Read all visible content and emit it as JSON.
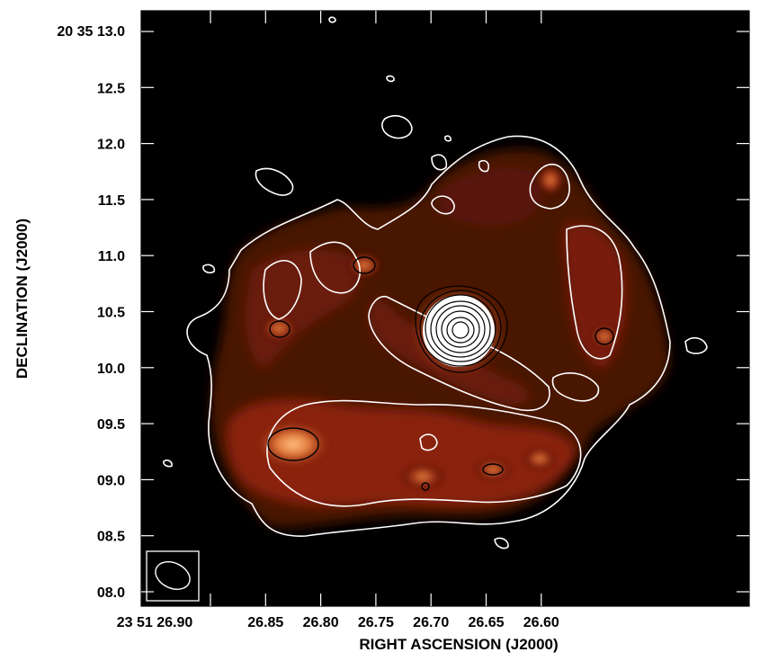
{
  "x_axis": {
    "label": "RIGHT ASCENSION (J2000)",
    "first_tick": "23 51 26.90",
    "ticks": [
      "26.85",
      "26.80",
      "26.75",
      "26.70",
      "26.65",
      "26.60"
    ]
  },
  "y_axis": {
    "label": "DECLINATION (J2000)",
    "top_tick": "20 35 13.0",
    "ticks": [
      "12.5",
      "12.0",
      "11.5",
      "11.0",
      "10.5",
      "10.0",
      "09.5",
      "09.0",
      "08.5",
      "08.0"
    ]
  },
  "colors": {
    "background": "#000000",
    "emission_low": "#3a0a03",
    "emission_mid": "#8a2410",
    "emission_high": "#e0783a",
    "emission_peak": "#ffc080",
    "contour_low": "#ffffff",
    "contour_high": "#000000"
  },
  "image_content": {
    "description_visible": "radio ring with central compact source and contour overlay",
    "beam_marker": "beam ellipse in lower-left box"
  }
}
